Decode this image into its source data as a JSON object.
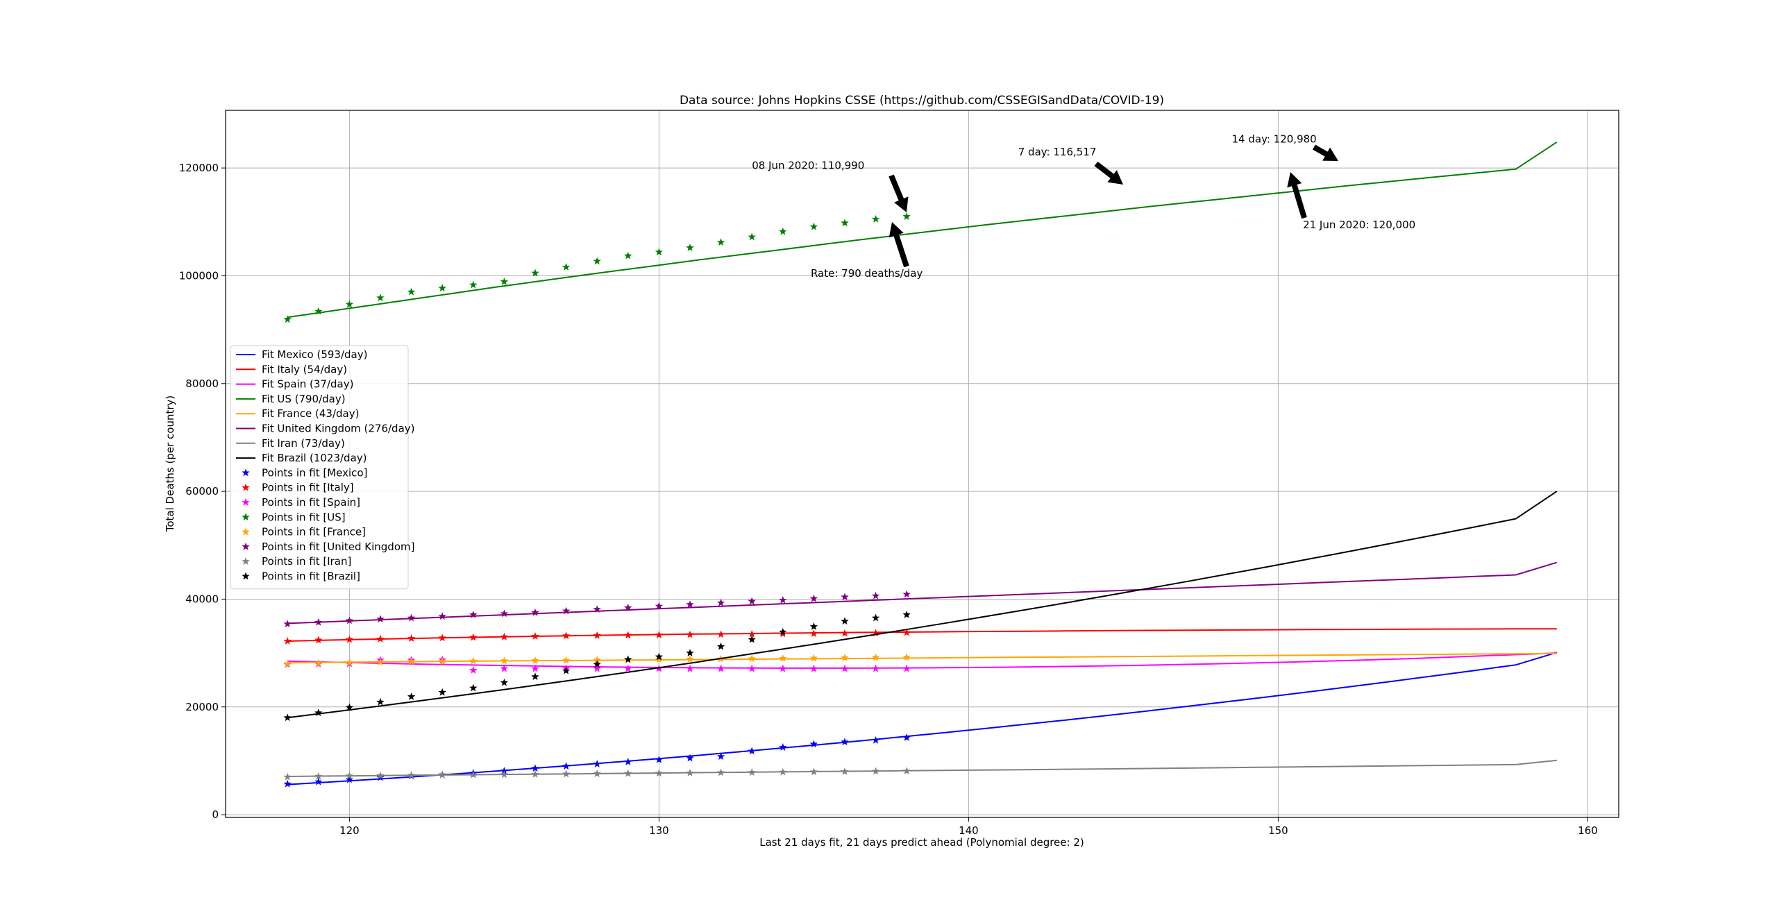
{
  "chart_data": {
    "type": "line",
    "title": "Data source: Johns Hopkins CSSE (https://github.com/CSSEGISandData/COVID-19)",
    "xlabel": "Last 21 days fit, 21 days predict ahead (Polynomial degree: 2)",
    "ylabel": "Total Deaths (per country)",
    "xlim": [
      116,
      161
    ],
    "ylim": [
      -500,
      130700
    ],
    "xticks": [
      120,
      130,
      140,
      150,
      160
    ],
    "yticks": [
      0,
      20000,
      40000,
      60000,
      80000,
      100000,
      120000
    ],
    "grid": true,
    "legend_position": "center-left",
    "fit_x": [
      118,
      159
    ],
    "points_x": [
      118,
      119,
      120,
      121,
      122,
      123,
      124,
      125,
      126,
      127,
      128,
      129,
      130,
      131,
      132,
      133,
      134,
      135,
      136,
      137,
      138
    ],
    "series": [
      {
        "name": "Mexico",
        "fit_label": "Fit Mexico (593/day)",
        "points_label": "Points in fit [Mexico]",
        "color": "#0000ff",
        "fit": [
          5600,
          6050,
          6520,
          7010,
          7520,
          8050,
          8600,
          9170,
          9760,
          10370,
          11000,
          11650,
          12320,
          13010,
          13720,
          14450,
          15200,
          15970,
          16760,
          17570,
          18400,
          19250,
          20120,
          21010,
          21920,
          22850,
          23800,
          24770,
          25760,
          26770,
          27800,
          30100
        ],
        "points": [
          5700,
          6100,
          6500,
          6900,
          7200,
          7400,
          7700,
          8100,
          8600,
          9000,
          9400,
          9800,
          10200,
          10500,
          10800,
          11800,
          12500,
          13100,
          13500,
          13800,
          14300
        ]
      },
      {
        "name": "Italy",
        "fit_label": "Fit Italy (54/day)",
        "points_label": "Points in fit [Italy]",
        "color": "#ff0000",
        "fit": [
          32200,
          32400,
          32550,
          32700,
          32850,
          32980,
          33100,
          33220,
          33330,
          33430,
          33520,
          33600,
          33680,
          33750,
          33820,
          33880,
          33940,
          34000,
          34050,
          34100,
          34150,
          34200,
          34240,
          34280,
          34320,
          34350,
          34380,
          34410,
          34440,
          34460,
          34480,
          34500
        ],
        "points": [
          32200,
          32400,
          32500,
          32600,
          32700,
          32800,
          32900,
          33000,
          33100,
          33200,
          33250,
          33300,
          33350,
          33400,
          33450,
          33500,
          33550,
          33600,
          33650,
          33700,
          33800
        ]
      },
      {
        "name": "Spain",
        "fit_label": "Fit Spain (37/day)",
        "points_label": "Points in fit [Spain]",
        "color": "#ff00ff",
        "fit": [
          28500,
          28200,
          27900,
          27700,
          27500,
          27350,
          27250,
          27200,
          27200,
          27250,
          27350,
          27500,
          27700,
          27950,
          28250,
          28600,
          29000,
          29500,
          30000
        ],
        "points": [
          27900,
          27950,
          28000,
          28700,
          28700,
          28750,
          26800,
          27100,
          27100,
          27100,
          27100,
          27100,
          27100,
          27100,
          27100,
          27100,
          27100,
          27100,
          27100,
          27100,
          27100
        ]
      },
      {
        "name": "US",
        "fit_label": "Fit US (790/day)",
        "points_label": "Points in fit [US]",
        "color": "#008000",
        "fit": [
          92300,
          93400,
          94500,
          95600,
          96700,
          97800,
          98850,
          99900,
          100900,
          101900,
          102900,
          103850,
          104800,
          105750,
          106700,
          107600,
          108500,
          109400,
          110250,
          111100,
          111950,
          112800,
          113600,
          114400,
          115200,
          116000,
          116800,
          117550,
          118300,
          119050,
          119800,
          124800
        ],
        "points": [
          91900,
          93400,
          94700,
          95900,
          97000,
          97700,
          98300,
          98900,
          100500,
          101600,
          102700,
          103700,
          104400,
          105200,
          106200,
          107200,
          108200,
          109100,
          109800,
          110500,
          110990
        ]
      },
      {
        "name": "France",
        "fit_label": "Fit France (43/day)",
        "points_label": "Points in fit [France]",
        "color": "#ffa500",
        "fit": [
          28200,
          28300,
          28400,
          28480,
          28560,
          28640,
          28720,
          28800,
          28880,
          28960,
          29040,
          29120,
          29200,
          29280,
          29360,
          29440,
          29520,
          29600,
          29680,
          29760,
          29840,
          29900
        ],
        "points": [
          28000,
          28100,
          28200,
          28300,
          28400,
          28450,
          28500,
          28550,
          28600,
          28650,
          28700,
          28750,
          28800,
          28850,
          28900,
          28950,
          29000,
          29050,
          29100,
          29150,
          29200
        ]
      },
      {
        "name": "United Kingdom",
        "fit_label": "Fit United Kingdom (276/day)",
        "points_label": "Points in fit [United Kingdom]",
        "color": "#800080",
        "fit": [
          35500,
          35800,
          36100,
          36400,
          36700,
          37000,
          37300,
          37600,
          37900,
          38200,
          38500,
          38800,
          39100,
          39400,
          39700,
          40000,
          40300,
          40600,
          40900,
          41200,
          41500,
          41800,
          42100,
          42400,
          42700,
          43000,
          43300,
          43600,
          43900,
          44200,
          44500,
          46800
        ],
        "points": [
          35400,
          35700,
          36000,
          36300,
          36500,
          36800,
          37100,
          37300,
          37500,
          37800,
          38100,
          38400,
          38700,
          39000,
          39300,
          39600,
          39800,
          40100,
          40400,
          40600,
          40900
        ]
      },
      {
        "name": "Iran",
        "fit_label": "Fit Iran (73/day)",
        "points_label": "Points in fit [Iran]",
        "color": "#808080",
        "fit": [
          7100,
          7170,
          7240,
          7310,
          7380,
          7450,
          7520,
          7590,
          7660,
          7730,
          7800,
          7870,
          7940,
          8010,
          8080,
          8150,
          8220,
          8290,
          8360,
          8430,
          8500,
          8580,
          8660,
          8740,
          8820,
          8900,
          8980,
          9060,
          9140,
          9220,
          9300,
          10100
        ],
        "points": [
          7000,
          7100,
          7200,
          7250,
          7300,
          7350,
          7400,
          7450,
          7500,
          7550,
          7600,
          7650,
          7700,
          7750,
          7800,
          7850,
          7900,
          7950,
          8000,
          8050,
          8100
        ]
      },
      {
        "name": "Brazil",
        "fit_label": "Fit Brazil (1023/day)",
        "points_label": "Points in fit [Brazil]",
        "color": "#000000",
        "fit": [
          18000,
          18950,
          19920,
          20900,
          21900,
          22920,
          23960,
          25020,
          26100,
          27200,
          28320,
          29460,
          30620,
          31800,
          33000,
          34220,
          35460,
          36720,
          38000,
          39300,
          40620,
          41960,
          43320,
          44700,
          46100,
          47520,
          48960,
          50420,
          51900,
          53400,
          54920,
          60000
        ],
        "points": [
          18000,
          18900,
          19900,
          20900,
          21900,
          22700,
          23500,
          24500,
          25600,
          26700,
          27900,
          28800,
          29300,
          30000,
          31200,
          32500,
          33900,
          34900,
          35900,
          36500,
          37100
        ]
      }
    ],
    "annotations": [
      {
        "text": "08 Jun 2020: 110,990",
        "x": 138,
        "y": 110990,
        "text_x": 133.0,
        "text_y": 119800
      },
      {
        "text": "Rate: 790 deaths/day",
        "x": 137.4,
        "y": 110800,
        "text_x": 134.9,
        "text_y": 99800
      },
      {
        "text": "7 day: 116,517",
        "x": 145,
        "y": 116517,
        "text_x": 141.6,
        "text_y": 122300
      },
      {
        "text": "14 day: 120,980",
        "x": 152,
        "y": 120980,
        "text_x": 148.5,
        "text_y": 124700
      },
      {
        "text": "21 Jun 2020: 120,000",
        "x": 150.4,
        "y": 120000,
        "text_x": 150.8,
        "text_y": 108800
      }
    ]
  }
}
